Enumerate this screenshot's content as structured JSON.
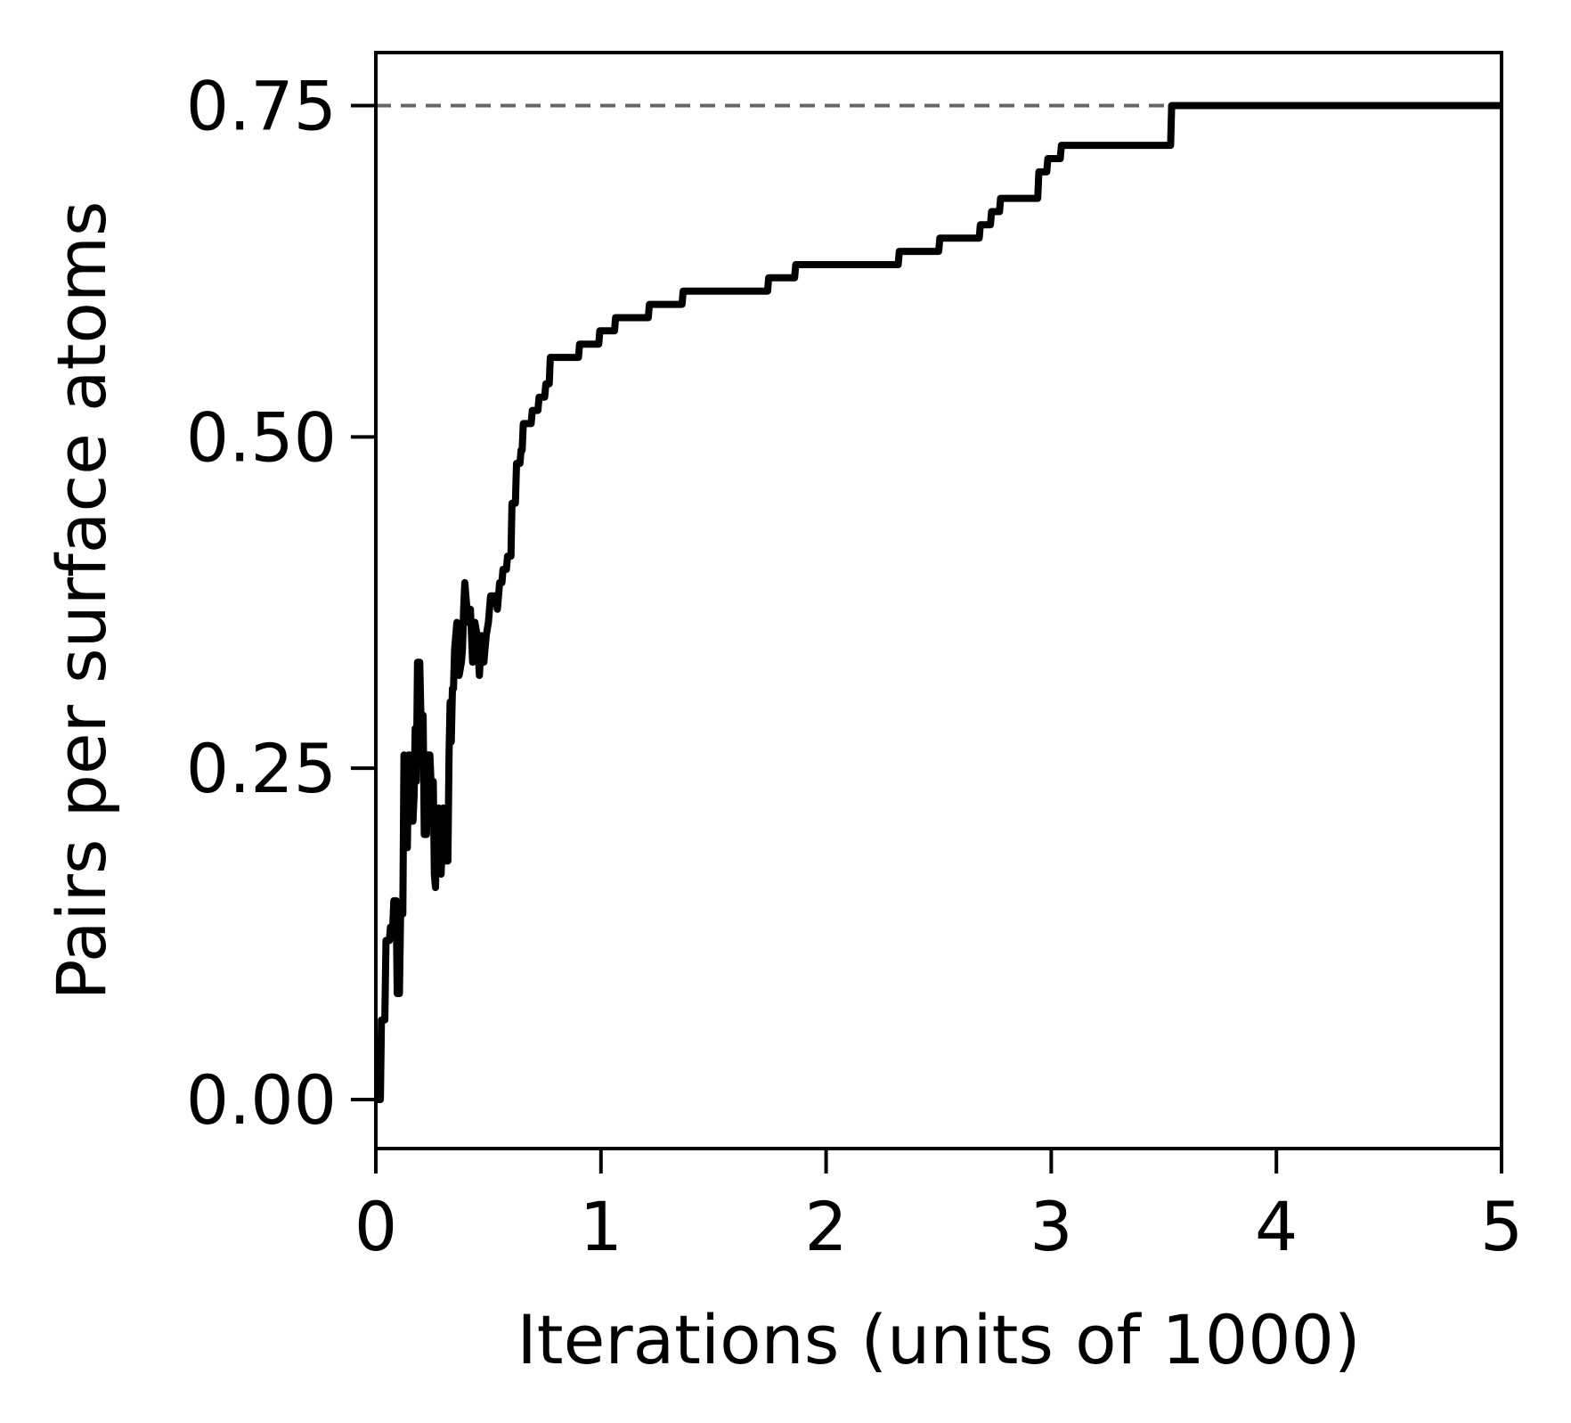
{
  "chart_data": {
    "type": "line",
    "title": "",
    "xlabel": "Iterations (units of 1000)",
    "ylabel": "Pairs per surface atoms",
    "xlim": [
      0,
      5
    ],
    "ylim": [
      -0.037,
      0.79
    ],
    "xticks": [
      0,
      1,
      2,
      3,
      4,
      5
    ],
    "xtick_labels": [
      "0",
      "1",
      "2",
      "3",
      "4",
      "5"
    ],
    "yticks": [
      0.0,
      0.25,
      0.5,
      0.75
    ],
    "ytick_labels": [
      "0.00",
      "0.25",
      "0.50",
      "0.75"
    ],
    "grid": false,
    "legend": "none",
    "reference_line": {
      "y": 0.75,
      "style": "dashed",
      "color": "#666666"
    },
    "series": [
      {
        "color": "#000000",
        "points": [
          [
            0.0,
            0.0
          ],
          [
            0.02,
            0.0
          ],
          [
            0.025,
            0.06
          ],
          [
            0.04,
            0.06
          ],
          [
            0.045,
            0.12
          ],
          [
            0.06,
            0.12
          ],
          [
            0.065,
            0.13
          ],
          [
            0.075,
            0.13
          ],
          [
            0.08,
            0.15
          ],
          [
            0.09,
            0.15
          ],
          [
            0.095,
            0.08
          ],
          [
            0.105,
            0.08
          ],
          [
            0.11,
            0.14
          ],
          [
            0.12,
            0.14
          ],
          [
            0.125,
            0.26
          ],
          [
            0.13,
            0.19
          ],
          [
            0.14,
            0.19
          ],
          [
            0.145,
            0.26
          ],
          [
            0.15,
            0.26
          ],
          [
            0.155,
            0.21
          ],
          [
            0.165,
            0.21
          ],
          [
            0.17,
            0.23
          ],
          [
            0.175,
            0.28
          ],
          [
            0.18,
            0.24
          ],
          [
            0.185,
            0.33
          ],
          [
            0.195,
            0.33
          ],
          [
            0.2,
            0.29
          ],
          [
            0.21,
            0.29
          ],
          [
            0.215,
            0.2
          ],
          [
            0.225,
            0.2
          ],
          [
            0.23,
            0.26
          ],
          [
            0.24,
            0.26
          ],
          [
            0.245,
            0.24
          ],
          [
            0.255,
            0.24
          ],
          [
            0.26,
            0.17
          ],
          [
            0.265,
            0.16
          ],
          [
            0.27,
            0.2
          ],
          [
            0.28,
            0.22
          ],
          [
            0.29,
            0.17
          ],
          [
            0.3,
            0.22
          ],
          [
            0.31,
            0.18
          ],
          [
            0.32,
            0.18
          ],
          [
            0.325,
            0.26
          ],
          [
            0.33,
            0.3
          ],
          [
            0.335,
            0.27
          ],
          [
            0.34,
            0.31
          ],
          [
            0.345,
            0.31
          ],
          [
            0.35,
            0.34
          ],
          [
            0.36,
            0.36
          ],
          [
            0.365,
            0.35
          ],
          [
            0.37,
            0.32
          ],
          [
            0.38,
            0.33
          ],
          [
            0.385,
            0.34
          ],
          [
            0.39,
            0.37
          ],
          [
            0.395,
            0.39
          ],
          [
            0.4,
            0.38
          ],
          [
            0.41,
            0.36
          ],
          [
            0.42,
            0.37
          ],
          [
            0.43,
            0.33
          ],
          [
            0.44,
            0.36
          ],
          [
            0.45,
            0.35
          ],
          [
            0.46,
            0.32
          ],
          [
            0.47,
            0.35
          ],
          [
            0.48,
            0.33
          ],
          [
            0.49,
            0.35
          ],
          [
            0.5,
            0.36
          ],
          [
            0.51,
            0.38
          ],
          [
            0.53,
            0.38
          ],
          [
            0.54,
            0.37
          ],
          [
            0.55,
            0.39
          ],
          [
            0.56,
            0.39
          ],
          [
            0.565,
            0.4
          ],
          [
            0.58,
            0.4
          ],
          [
            0.585,
            0.41
          ],
          [
            0.6,
            0.41
          ],
          [
            0.605,
            0.45
          ],
          [
            0.62,
            0.45
          ],
          [
            0.625,
            0.48
          ],
          [
            0.64,
            0.48
          ],
          [
            0.645,
            0.49
          ],
          [
            0.65,
            0.49
          ],
          [
            0.655,
            0.51
          ],
          [
            0.69,
            0.51
          ],
          [
            0.695,
            0.52
          ],
          [
            0.72,
            0.52
          ],
          [
            0.725,
            0.53
          ],
          [
            0.75,
            0.53
          ],
          [
            0.755,
            0.54
          ],
          [
            0.77,
            0.54
          ],
          [
            0.775,
            0.56
          ],
          [
            0.9,
            0.56
          ],
          [
            0.905,
            0.57
          ],
          [
            0.99,
            0.57
          ],
          [
            0.995,
            0.58
          ],
          [
            1.06,
            0.58
          ],
          [
            1.065,
            0.59
          ],
          [
            1.21,
            0.59
          ],
          [
            1.215,
            0.6
          ],
          [
            1.36,
            0.6
          ],
          [
            1.365,
            0.61
          ],
          [
            1.74,
            0.61
          ],
          [
            1.745,
            0.62
          ],
          [
            1.86,
            0.62
          ],
          [
            1.865,
            0.63
          ],
          [
            2.32,
            0.63
          ],
          [
            2.325,
            0.64
          ],
          [
            2.5,
            0.64
          ],
          [
            2.505,
            0.65
          ],
          [
            2.68,
            0.65
          ],
          [
            2.685,
            0.66
          ],
          [
            2.73,
            0.66
          ],
          [
            2.735,
            0.67
          ],
          [
            2.77,
            0.67
          ],
          [
            2.775,
            0.68
          ],
          [
            2.94,
            0.68
          ],
          [
            2.945,
            0.7
          ],
          [
            2.98,
            0.7
          ],
          [
            2.985,
            0.71
          ],
          [
            3.04,
            0.71
          ],
          [
            3.045,
            0.72
          ],
          [
            3.53,
            0.72
          ],
          [
            3.535,
            0.75
          ],
          [
            5.0,
            0.75
          ]
        ]
      }
    ]
  }
}
